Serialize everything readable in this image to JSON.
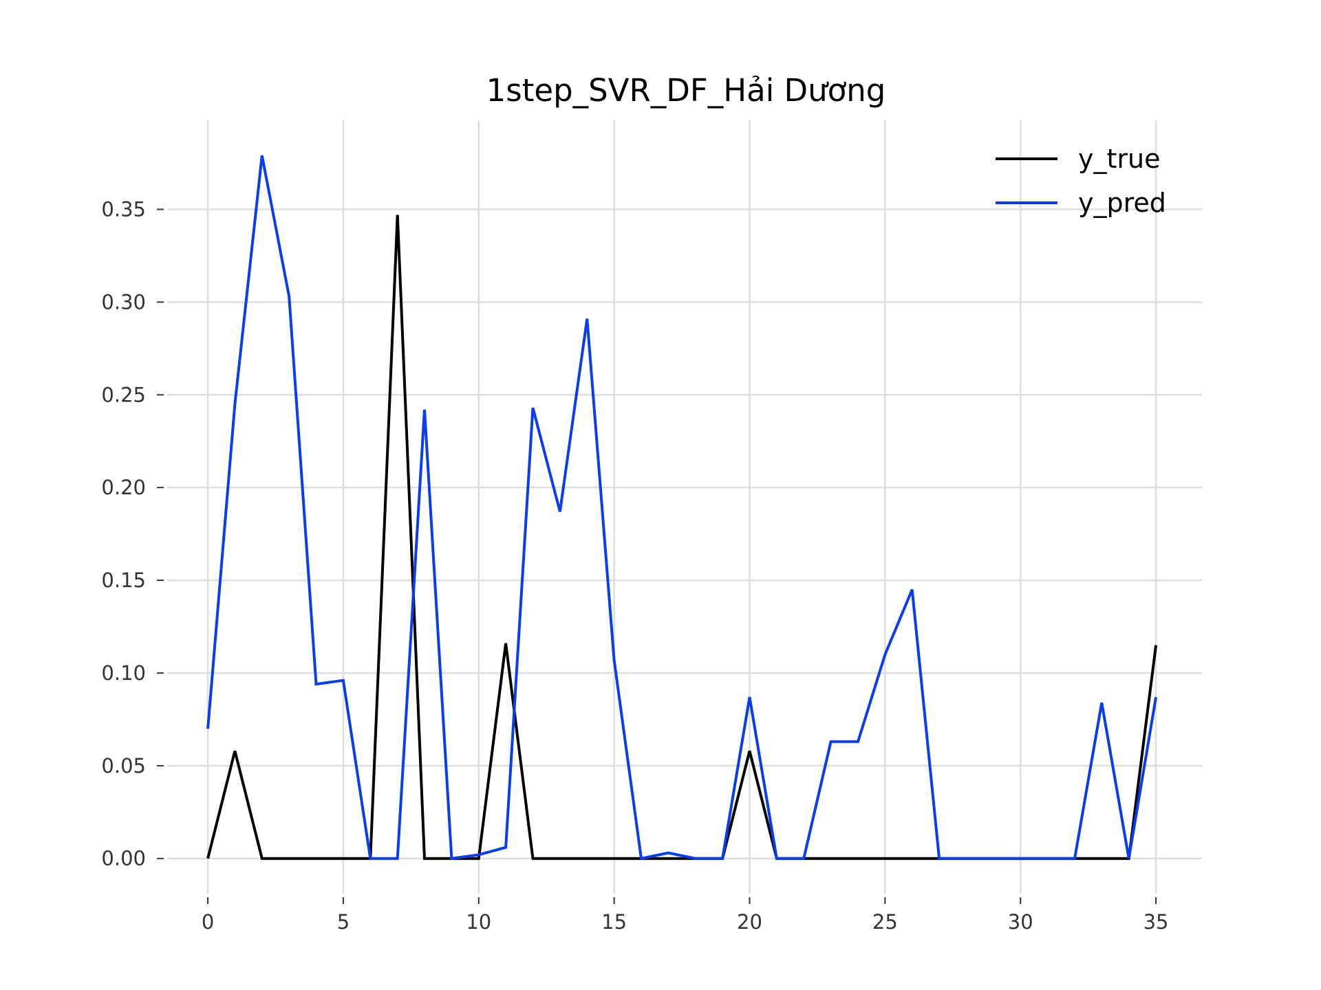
{
  "chart_data": {
    "type": "line",
    "title": "1step_SVR_DF_Hải Dương",
    "xlabel": "",
    "ylabel": "",
    "x": [
      0,
      1,
      2,
      3,
      4,
      5,
      6,
      7,
      8,
      9,
      10,
      11,
      12,
      13,
      14,
      15,
      16,
      17,
      18,
      19,
      20,
      21,
      22,
      23,
      24,
      25,
      26,
      27,
      28,
      29,
      30,
      31,
      32,
      33,
      34,
      35
    ],
    "xlim": [
      -1.5,
      36.7
    ],
    "ylim": [
      -0.019,
      0.398
    ],
    "xticks": [
      0,
      5,
      10,
      15,
      20,
      25,
      30,
      35
    ],
    "xtick_labels": [
      "0",
      "5",
      "10",
      "15",
      "20",
      "25",
      "30",
      "35"
    ],
    "yticks": [
      0.0,
      0.05,
      0.1,
      0.15,
      0.2,
      0.25,
      0.3,
      0.35
    ],
    "ytick_labels": [
      "0.00",
      "0.05",
      "0.10",
      "0.15",
      "0.20",
      "0.25",
      "0.30",
      "0.35"
    ],
    "grid": true,
    "legend": {
      "position": "top-right"
    },
    "series": [
      {
        "name": "y_true",
        "color": "#000000",
        "values": [
          0,
          0.058,
          0,
          0,
          0,
          0,
          0,
          0.347,
          0,
          0,
          0,
          0.116,
          0,
          0,
          0,
          0,
          0,
          0,
          0,
          0,
          0.058,
          0,
          0,
          0,
          0,
          0,
          0,
          0,
          0,
          0,
          0,
          0,
          0,
          0,
          0,
          0.115
        ]
      },
      {
        "name": "y_pred",
        "color": "#0a3cf0",
        "values": [
          0.07,
          0.245,
          0.379,
          0.303,
          0.094,
          0.096,
          0.0,
          0.0,
          0.242,
          0.0,
          0.002,
          0.006,
          0.243,
          0.187,
          0.291,
          0.107,
          0.0,
          0.003,
          0.0,
          0.0,
          0.087,
          0.0,
          0.0,
          0.063,
          0.063,
          0.11,
          0.145,
          0.0,
          0.0,
          0.0,
          0.0,
          0.0,
          0.0,
          0.084,
          0.0,
          0.087
        ]
      }
    ]
  }
}
